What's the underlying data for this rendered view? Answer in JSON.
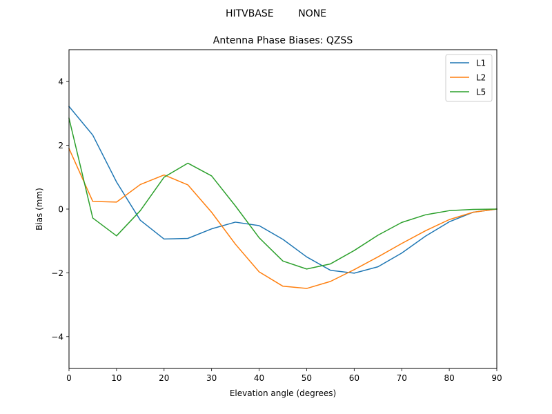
{
  "figure": {
    "suptitle": "HITVBASE        NONE"
  },
  "chart_data": {
    "type": "line",
    "title": "Antenna Phase Biases: QZSS",
    "xlabel": "Elevation angle (degrees)",
    "ylabel": "Bias (mm)",
    "xlim": [
      0,
      90
    ],
    "ylim": [
      -5,
      5
    ],
    "xticks": [
      0,
      10,
      20,
      30,
      40,
      50,
      60,
      70,
      80,
      90
    ],
    "yticks": [
      -4,
      -2,
      0,
      2,
      4
    ],
    "ytick_labels": [
      "−4",
      "−2",
      "0",
      "2",
      "4"
    ],
    "grid": false,
    "legend_position": "top-right",
    "x": [
      0,
      5,
      10,
      15,
      20,
      25,
      30,
      35,
      40,
      45,
      50,
      55,
      60,
      65,
      70,
      75,
      80,
      85,
      90
    ],
    "series": [
      {
        "name": "L1",
        "color": "#1f77b4",
        "values": [
          3.22,
          2.32,
          0.85,
          -0.35,
          -0.94,
          -0.92,
          -0.62,
          -0.41,
          -0.52,
          -0.95,
          -1.5,
          -1.92,
          -2.01,
          -1.81,
          -1.38,
          -0.85,
          -0.4,
          -0.1,
          0.0
        ]
      },
      {
        "name": "L2",
        "color": "#ff7f0e",
        "values": [
          1.9,
          0.24,
          0.22,
          0.77,
          1.07,
          0.76,
          -0.1,
          -1.1,
          -1.97,
          -2.42,
          -2.49,
          -2.27,
          -1.9,
          -1.5,
          -1.08,
          -0.68,
          -0.33,
          -0.1,
          0.0
        ]
      },
      {
        "name": "L5",
        "color": "#2ca02c",
        "values": [
          2.85,
          -0.28,
          -0.84,
          -0.05,
          1.0,
          1.44,
          1.04,
          0.1,
          -0.9,
          -1.63,
          -1.88,
          -1.72,
          -1.3,
          -0.82,
          -0.42,
          -0.18,
          -0.05,
          -0.01,
          0.0
        ]
      }
    ]
  }
}
